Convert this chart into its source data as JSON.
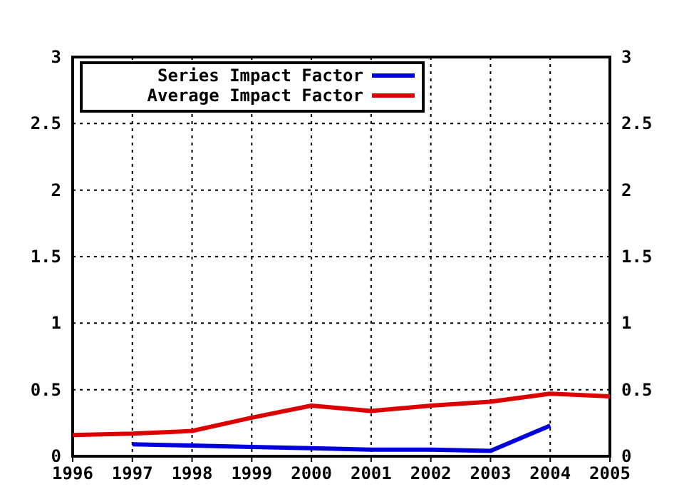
{
  "chart_data": {
    "type": "line",
    "x": [
      1996,
      1997,
      1998,
      1999,
      2000,
      2001,
      2002,
      2003,
      2004,
      2005
    ],
    "series": [
      {
        "name": "Series Impact Factor",
        "color": "#0000dd",
        "values": [
          null,
          0.09,
          0.08,
          0.07,
          0.06,
          0.05,
          0.05,
          0.04,
          0.23,
          null
        ]
      },
      {
        "name": "Average Impact Factor",
        "color": "#dd0000",
        "values": [
          0.16,
          0.17,
          0.19,
          0.29,
          0.38,
          0.34,
          0.38,
          0.41,
          0.47,
          0.45
        ]
      }
    ],
    "xlim": [
      1996,
      2005
    ],
    "xticks": [
      1996,
      1997,
      1998,
      1999,
      2000,
      2001,
      2002,
      2003,
      2004,
      2005
    ],
    "ylim": [
      0,
      3
    ],
    "yticks": [
      0,
      0.5,
      1,
      1.5,
      2,
      2.5,
      3
    ],
    "y2lim": [
      0,
      3
    ],
    "y2ticks": [
      0,
      0.5,
      1,
      1.5,
      2,
      2.5,
      3
    ],
    "grid": true,
    "legend": "top left",
    "line_style": "solid"
  }
}
